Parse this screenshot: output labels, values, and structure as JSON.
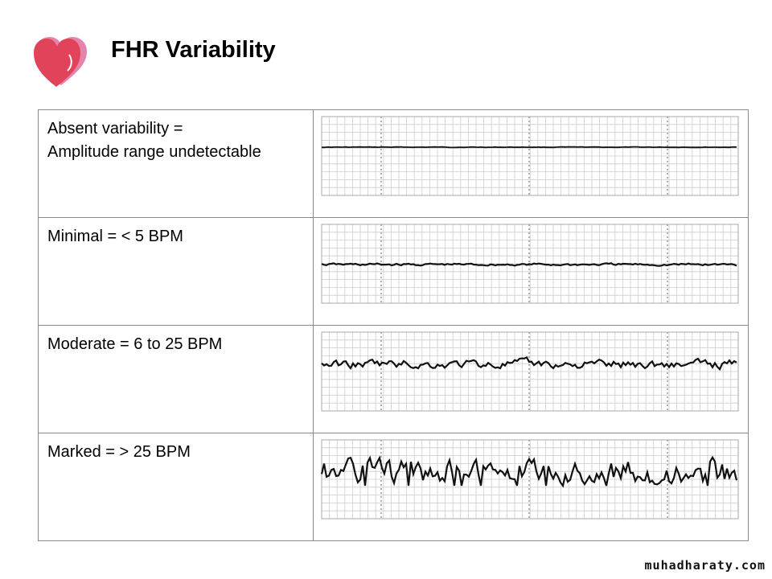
{
  "slide": {
    "title": "FHR Variability",
    "watermark": "muhadharaty.com"
  },
  "rows": [
    {
      "line1": "Absent variability =",
      "line2": "Amplitude range undetectable",
      "trace": "absent-variability-trace"
    },
    {
      "line1": "Minimal = < 5 BPM",
      "line2": "",
      "trace": "minimal-variability-trace"
    },
    {
      "line1": "Moderate = 6 to 25 BPM",
      "line2": "",
      "trace": "moderate-variability-trace"
    },
    {
      "line1": "Marked = > 25 BPM",
      "line2": "",
      "trace": "marked-variability-trace"
    }
  ],
  "colors": {
    "heart_main": "#e0435a",
    "heart_back": "#e583ad",
    "trace": "#111111",
    "grid": "#c8c8c8"
  },
  "icons": {
    "logo": "heart-icon"
  }
}
